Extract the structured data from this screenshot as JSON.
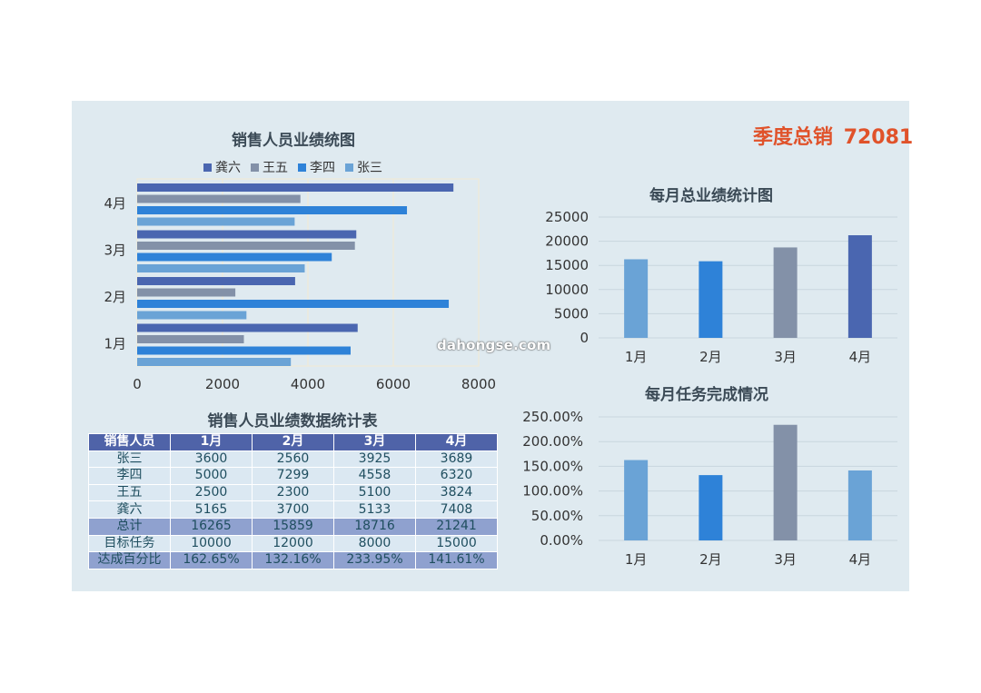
{
  "quarter_total": {
    "label": "季度总销",
    "value": "72081"
  },
  "watermark": "dahongse.com",
  "colors": {
    "gong": "#4a66b0",
    "wang": "#8391a8",
    "li": "#2e82d8",
    "zhang": "#6aa3d6",
    "panel": "#dfeaf0",
    "accent": "#e0522a"
  },
  "chart_data": [
    {
      "type": "bar",
      "orientation": "horizontal",
      "title": "销售人员业绩统图",
      "categories": [
        "1月",
        "2月",
        "3月",
        "4月"
      ],
      "series": [
        {
          "name": "龚六",
          "color": "#4a66b0",
          "values": [
            5165,
            3700,
            5133,
            7408
          ]
        },
        {
          "name": "王五",
          "color": "#8391a8",
          "values": [
            2500,
            2300,
            5100,
            3824
          ]
        },
        {
          "name": "李四",
          "color": "#2e82d8",
          "values": [
            5000,
            7299,
            4558,
            6320
          ]
        },
        {
          "name": "张三",
          "color": "#6aa3d6",
          "values": [
            3600,
            2560,
            3925,
            3689
          ]
        }
      ],
      "xlim": [
        0,
        8000
      ],
      "xticks": [
        "0",
        "2000",
        "4000",
        "6000",
        "8000"
      ],
      "legend": "top"
    },
    {
      "type": "bar",
      "title": "每月总业绩统计图",
      "categories": [
        "1月",
        "2月",
        "3月",
        "4月"
      ],
      "values": [
        16265,
        15859,
        18716,
        21241
      ],
      "colors": [
        "#6aa3d6",
        "#2e82d8",
        "#8391a8",
        "#4a66b0"
      ],
      "ylim": [
        0,
        25000
      ],
      "yticks": [
        "0",
        "5000",
        "10000",
        "15000",
        "20000",
        "25000"
      ]
    },
    {
      "type": "bar",
      "title": "每月任务完成情况",
      "categories": [
        "1月",
        "2月",
        "3月",
        "4月"
      ],
      "values": [
        162.65,
        132.16,
        233.95,
        141.61
      ],
      "colors": [
        "#6aa3d6",
        "#2e82d8",
        "#8391a8",
        "#6aa3d6"
      ],
      "ylim": [
        0,
        250
      ],
      "yticks": [
        "0.00%",
        "50.00%",
        "100.00%",
        "150.00%",
        "200.00%",
        "250.00%"
      ]
    }
  ],
  "table": {
    "title": "销售人员业绩数据统计表",
    "headers": [
      "销售人员",
      "1月",
      "2月",
      "3月",
      "4月"
    ],
    "rows": [
      {
        "cells": [
          "张三",
          "3600",
          "2560",
          "3925",
          "3689"
        ],
        "style": "plain"
      },
      {
        "cells": [
          "李四",
          "5000",
          "7299",
          "4558",
          "6320"
        ],
        "style": "plain"
      },
      {
        "cells": [
          "王五",
          "2500",
          "2300",
          "5100",
          "3824"
        ],
        "style": "plain"
      },
      {
        "cells": [
          "龚六",
          "5165",
          "3700",
          "5133",
          "7408"
        ],
        "style": "plain"
      },
      {
        "cells": [
          "总计",
          "16265",
          "15859",
          "18716",
          "21241"
        ],
        "style": "hl"
      },
      {
        "cells": [
          "目标任务",
          "10000",
          "12000",
          "8000",
          "15000"
        ],
        "style": "plain"
      },
      {
        "cells": [
          "达成百分比",
          "162.65%",
          "132.16%",
          "233.95%",
          "141.61%"
        ],
        "style": "hl"
      }
    ]
  }
}
